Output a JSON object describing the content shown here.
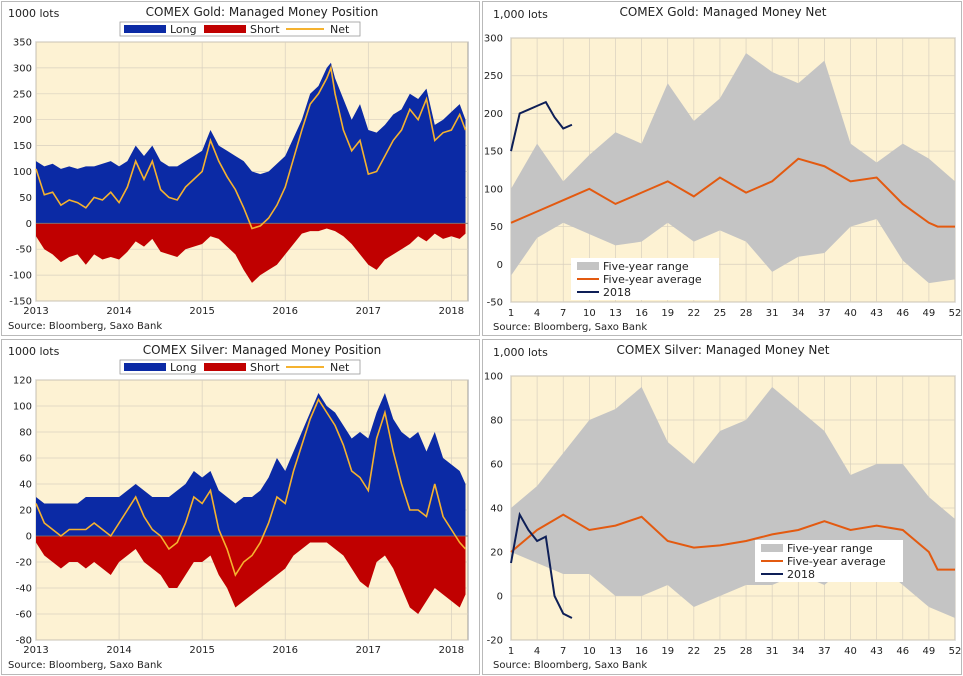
{
  "colors": {
    "plot_bg": "#fdf2d3",
    "long": "#0b2aa5",
    "short": "#c00000",
    "net_position": "#f5b22f",
    "range": "#c4c4c4",
    "average": "#e35a10",
    "current": "#0e1f57",
    "grid": "#d8d0bf"
  },
  "chart_data": [
    {
      "id": "gold_position",
      "type": "area",
      "title": "COMEX Gold: Managed Money Position",
      "unit_label": "1000 lots",
      "source": "Source: Bloomberg, Saxo Bank",
      "xticks": [
        "2013",
        "2014",
        "2015",
        "2016",
        "2017",
        "2018"
      ],
      "xlim": [
        2013,
        2018.2
      ],
      "ylim": [
        -150,
        350
      ],
      "yticks": [
        "-150",
        "-100",
        "-50",
        "0",
        "50",
        "100",
        "150",
        "200",
        "250",
        "300",
        "350"
      ],
      "legend": [
        "Long",
        "Short",
        "Net"
      ],
      "grid": true,
      "legend_position": "top",
      "series": [
        {
          "name": "Long",
          "x": [
            2013.0,
            2013.1,
            2013.2,
            2013.3,
            2013.4,
            2013.5,
            2013.6,
            2013.7,
            2013.8,
            2013.9,
            2014.0,
            2014.1,
            2014.2,
            2014.3,
            2014.4,
            2014.5,
            2014.6,
            2014.7,
            2014.8,
            2014.9,
            2015.0,
            2015.1,
            2015.2,
            2015.3,
            2015.4,
            2015.5,
            2015.6,
            2015.7,
            2015.8,
            2015.9,
            2016.0,
            2016.1,
            2016.2,
            2016.3,
            2016.4,
            2016.5,
            2016.55,
            2016.6,
            2016.7,
            2016.8,
            2016.9,
            2017.0,
            2017.1,
            2017.2,
            2017.3,
            2017.4,
            2017.5,
            2017.6,
            2017.7,
            2017.8,
            2017.9,
            2018.0,
            2018.1,
            2018.17
          ],
          "values": [
            120,
            110,
            115,
            105,
            110,
            105,
            110,
            110,
            115,
            120,
            110,
            120,
            150,
            130,
            150,
            120,
            110,
            110,
            120,
            130,
            140,
            180,
            150,
            140,
            130,
            120,
            100,
            95,
            100,
            115,
            130,
            165,
            200,
            250,
            265,
            300,
            310,
            280,
            240,
            200,
            230,
            180,
            175,
            190,
            210,
            220,
            250,
            240,
            260,
            190,
            200,
            215,
            230,
            200
          ]
        },
        {
          "name": "Short",
          "x": [
            2013.0,
            2013.1,
            2013.2,
            2013.3,
            2013.4,
            2013.5,
            2013.6,
            2013.7,
            2013.8,
            2013.9,
            2014.0,
            2014.1,
            2014.2,
            2014.3,
            2014.4,
            2014.5,
            2014.6,
            2014.7,
            2014.8,
            2014.9,
            2015.0,
            2015.1,
            2015.2,
            2015.3,
            2015.4,
            2015.5,
            2015.6,
            2015.7,
            2015.8,
            2015.9,
            2016.0,
            2016.1,
            2016.2,
            2016.3,
            2016.4,
            2016.5,
            2016.6,
            2016.7,
            2016.8,
            2016.9,
            2017.0,
            2017.1,
            2017.2,
            2017.3,
            2017.4,
            2017.5,
            2017.6,
            2017.7,
            2017.8,
            2017.9,
            2018.0,
            2018.1,
            2018.17
          ],
          "values": [
            -25,
            -50,
            -60,
            -75,
            -65,
            -60,
            -80,
            -60,
            -70,
            -65,
            -70,
            -55,
            -35,
            -45,
            -30,
            -55,
            -60,
            -65,
            -50,
            -45,
            -40,
            -25,
            -30,
            -45,
            -60,
            -90,
            -115,
            -100,
            -90,
            -80,
            -60,
            -40,
            -20,
            -15,
            -15,
            -10,
            -15,
            -25,
            -40,
            -60,
            -80,
            -90,
            -70,
            -60,
            -50,
            -40,
            -25,
            -35,
            -20,
            -30,
            -25,
            -30,
            -20
          ]
        },
        {
          "name": "Net",
          "x": [
            2013.0,
            2013.1,
            2013.2,
            2013.3,
            2013.4,
            2013.5,
            2013.6,
            2013.7,
            2013.8,
            2013.9,
            2014.0,
            2014.1,
            2014.2,
            2014.3,
            2014.4,
            2014.5,
            2014.6,
            2014.7,
            2014.8,
            2014.9,
            2015.0,
            2015.1,
            2015.2,
            2015.3,
            2015.4,
            2015.5,
            2015.6,
            2015.7,
            2015.8,
            2015.9,
            2016.0,
            2016.1,
            2016.2,
            2016.3,
            2016.4,
            2016.5,
            2016.55,
            2016.6,
            2016.7,
            2016.8,
            2016.9,
            2017.0,
            2017.1,
            2017.2,
            2017.3,
            2017.4,
            2017.5,
            2017.6,
            2017.7,
            2017.8,
            2017.9,
            2018.0,
            2018.1,
            2018.17
          ],
          "values": [
            105,
            55,
            60,
            35,
            45,
            40,
            30,
            50,
            45,
            60,
            40,
            70,
            120,
            85,
            120,
            65,
            50,
            45,
            70,
            85,
            100,
            160,
            120,
            90,
            65,
            30,
            -10,
            -5,
            10,
            35,
            70,
            125,
            180,
            230,
            250,
            280,
            300,
            250,
            180,
            140,
            160,
            95,
            100,
            130,
            160,
            180,
            220,
            200,
            240,
            160,
            175,
            180,
            210,
            180
          ]
        }
      ]
    },
    {
      "id": "gold_net",
      "type": "line",
      "title": "COMEX Gold: Managed Money Net",
      "unit_label": "1,000 lots",
      "source": "Source: Bloomberg, Saxo Bank",
      "xticks": [
        "1",
        "4",
        "7",
        "10",
        "13",
        "16",
        "19",
        "22",
        "25",
        "28",
        "31",
        "34",
        "37",
        "40",
        "43",
        "46",
        "49",
        "52"
      ],
      "xlim": [
        1,
        52
      ],
      "ylim": [
        -50,
        300
      ],
      "yticks": [
        "-50",
        "0",
        "50",
        "100",
        "150",
        "200",
        "250",
        "300"
      ],
      "grid": true,
      "legend_position": "bottom-left",
      "range_x": [
        1,
        4,
        7,
        10,
        13,
        16,
        19,
        22,
        25,
        28,
        31,
        34,
        37,
        40,
        43,
        46,
        49,
        52
      ],
      "range_upper": [
        100,
        160,
        110,
        145,
        175,
        160,
        240,
        190,
        220,
        280,
        255,
        240,
        270,
        160,
        135,
        160,
        140,
        110
      ],
      "range_lower": [
        -15,
        35,
        55,
        40,
        25,
        30,
        55,
        30,
        45,
        30,
        -10,
        10,
        15,
        50,
        60,
        5,
        -25,
        -20
      ],
      "series": [
        {
          "name": "Five-year range",
          "values": []
        },
        {
          "name": "Five-year average",
          "x": [
            1,
            4,
            7,
            10,
            13,
            16,
            19,
            22,
            25,
            28,
            31,
            34,
            37,
            40,
            43,
            46,
            49,
            50,
            51,
            52
          ],
          "values": [
            55,
            70,
            85,
            100,
            80,
            95,
            110,
            90,
            115,
            95,
            110,
            140,
            130,
            110,
            115,
            80,
            55,
            50,
            50,
            50
          ]
        },
        {
          "name": "2018",
          "x": [
            1,
            2,
            3,
            4,
            5,
            6,
            7,
            8
          ],
          "values": [
            150,
            200,
            205,
            210,
            215,
            195,
            180,
            185
          ]
        }
      ]
    },
    {
      "id": "silver_position",
      "type": "area",
      "title": "COMEX Silver: Managed Money Position",
      "unit_label": "1000 lots",
      "source": "Source: Bloomberg, Saxo Bank",
      "xticks": [
        "2013",
        "2014",
        "2015",
        "2016",
        "2017",
        "2018"
      ],
      "xlim": [
        2013,
        2018.2
      ],
      "ylim": [
        -80,
        120
      ],
      "yticks": [
        "-80",
        "-60",
        "-40",
        "-20",
        "0",
        "20",
        "40",
        "60",
        "80",
        "100",
        "120"
      ],
      "legend": [
        "Long",
        "Short",
        "Net"
      ],
      "grid": true,
      "legend_position": "top",
      "series": [
        {
          "name": "Long",
          "x": [
            2013.0,
            2013.1,
            2013.2,
            2013.3,
            2013.4,
            2013.5,
            2013.6,
            2013.7,
            2013.8,
            2013.9,
            2014.0,
            2014.1,
            2014.2,
            2014.3,
            2014.4,
            2014.5,
            2014.6,
            2014.7,
            2014.8,
            2014.9,
            2015.0,
            2015.1,
            2015.2,
            2015.3,
            2015.4,
            2015.5,
            2015.6,
            2015.7,
            2015.8,
            2015.9,
            2016.0,
            2016.1,
            2016.2,
            2016.3,
            2016.4,
            2016.5,
            2016.6,
            2016.7,
            2016.8,
            2016.9,
            2017.0,
            2017.1,
            2017.2,
            2017.3,
            2017.4,
            2017.5,
            2017.6,
            2017.7,
            2017.8,
            2017.9,
            2018.0,
            2018.1,
            2018.17
          ],
          "values": [
            30,
            25,
            25,
            25,
            25,
            25,
            30,
            30,
            30,
            30,
            30,
            35,
            40,
            35,
            30,
            30,
            30,
            35,
            40,
            50,
            45,
            50,
            35,
            30,
            25,
            30,
            30,
            35,
            45,
            60,
            50,
            65,
            80,
            95,
            110,
            100,
            95,
            85,
            75,
            80,
            75,
            95,
            110,
            90,
            80,
            75,
            80,
            65,
            80,
            60,
            55,
            50,
            40
          ]
        },
        {
          "name": "Short",
          "x": [
            2013.0,
            2013.1,
            2013.2,
            2013.3,
            2013.4,
            2013.5,
            2013.6,
            2013.7,
            2013.8,
            2013.9,
            2014.0,
            2014.1,
            2014.2,
            2014.3,
            2014.4,
            2014.5,
            2014.6,
            2014.7,
            2014.8,
            2014.9,
            2015.0,
            2015.1,
            2015.2,
            2015.3,
            2015.4,
            2015.5,
            2015.6,
            2015.7,
            2015.8,
            2015.9,
            2016.0,
            2016.1,
            2016.2,
            2016.3,
            2016.4,
            2016.5,
            2016.6,
            2016.7,
            2016.8,
            2016.9,
            2017.0,
            2017.1,
            2017.2,
            2017.3,
            2017.4,
            2017.5,
            2017.6,
            2017.7,
            2017.8,
            2017.9,
            2018.0,
            2018.1,
            2018.17
          ],
          "values": [
            -5,
            -15,
            -20,
            -25,
            -20,
            -20,
            -25,
            -20,
            -25,
            -30,
            -20,
            -15,
            -10,
            -20,
            -25,
            -30,
            -40,
            -40,
            -30,
            -20,
            -20,
            -15,
            -30,
            -40,
            -55,
            -50,
            -45,
            -40,
            -35,
            -30,
            -25,
            -15,
            -10,
            -5,
            -5,
            -5,
            -10,
            -15,
            -25,
            -35,
            -40,
            -20,
            -15,
            -25,
            -40,
            -55,
            -60,
            -50,
            -40,
            -45,
            -50,
            -55,
            -45
          ]
        },
        {
          "name": "Net",
          "x": [
            2013.0,
            2013.1,
            2013.2,
            2013.3,
            2013.4,
            2013.5,
            2013.6,
            2013.7,
            2013.8,
            2013.9,
            2014.0,
            2014.1,
            2014.2,
            2014.3,
            2014.4,
            2014.5,
            2014.6,
            2014.7,
            2014.8,
            2014.9,
            2015.0,
            2015.1,
            2015.2,
            2015.3,
            2015.4,
            2015.5,
            2015.6,
            2015.7,
            2015.8,
            2015.9,
            2016.0,
            2016.1,
            2016.2,
            2016.3,
            2016.4,
            2016.5,
            2016.6,
            2016.7,
            2016.8,
            2016.9,
            2017.0,
            2017.1,
            2017.2,
            2017.3,
            2017.4,
            2017.5,
            2017.6,
            2017.7,
            2017.8,
            2017.9,
            2018.0,
            2018.1,
            2018.17
          ],
          "values": [
            25,
            10,
            5,
            0,
            5,
            5,
            5,
            10,
            5,
            0,
            10,
            20,
            30,
            15,
            5,
            0,
            -10,
            -5,
            10,
            30,
            25,
            35,
            5,
            -10,
            -30,
            -20,
            -15,
            -5,
            10,
            30,
            25,
            50,
            70,
            90,
            105,
            95,
            85,
            70,
            50,
            45,
            35,
            75,
            95,
            65,
            40,
            20,
            20,
            15,
            40,
            15,
            5,
            -5,
            -10
          ]
        }
      ]
    },
    {
      "id": "silver_net",
      "type": "line",
      "title": "COMEX Silver: Managed Money Net",
      "unit_label": "1,000 lots",
      "source": "Source: Bloomberg, Saxo Bank",
      "xticks": [
        "1",
        "4",
        "7",
        "10",
        "13",
        "16",
        "19",
        "22",
        "25",
        "28",
        "31",
        "34",
        "37",
        "40",
        "43",
        "46",
        "49",
        "52"
      ],
      "xlim": [
        1,
        52
      ],
      "ylim": [
        -20,
        100
      ],
      "yticks": [
        "-20",
        "0",
        "20",
        "40",
        "60",
        "80",
        "100"
      ],
      "grid": true,
      "legend_position": "middle-right",
      "range_x": [
        1,
        4,
        7,
        10,
        13,
        16,
        19,
        22,
        25,
        28,
        31,
        34,
        37,
        40,
        43,
        46,
        49,
        52
      ],
      "range_upper": [
        40,
        50,
        65,
        80,
        85,
        95,
        70,
        60,
        75,
        80,
        95,
        85,
        75,
        55,
        60,
        60,
        45,
        35
      ],
      "range_lower": [
        20,
        15,
        10,
        10,
        0,
        0,
        5,
        -5,
        0,
        5,
        5,
        10,
        5,
        15,
        15,
        5,
        -5,
        -10
      ],
      "series": [
        {
          "name": "Five-year range",
          "values": []
        },
        {
          "name": "Five-year average",
          "x": [
            1,
            4,
            7,
            10,
            13,
            16,
            19,
            22,
            25,
            28,
            31,
            34,
            37,
            40,
            43,
            46,
            49,
            50,
            51,
            52
          ],
          "values": [
            20,
            30,
            37,
            30,
            32,
            36,
            25,
            22,
            23,
            25,
            28,
            30,
            34,
            30,
            32,
            30,
            20,
            12,
            12,
            12
          ]
        },
        {
          "name": "2018",
          "x": [
            1,
            2,
            3,
            4,
            5,
            6,
            7,
            8
          ],
          "values": [
            15,
            37,
            30,
            25,
            27,
            0,
            -8,
            -10
          ]
        }
      ]
    }
  ]
}
